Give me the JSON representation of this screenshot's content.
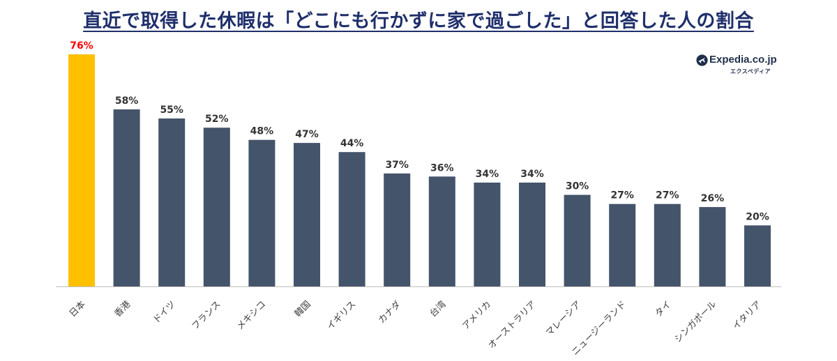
{
  "header": {
    "title": "直近で取得した休暇は「どこにも行かずに家で過ごした」と回答した人の割合"
  },
  "logo": {
    "brand": "Expedia.co.jp",
    "sub": "エクスペディア",
    "mark_icon": "plane-globe-icon"
  },
  "colors": {
    "highlight_bar": "#FFC000",
    "bar": "#44546A",
    "highlight_label": "#FF0000",
    "label": "#333333",
    "title": "#1F2F6B",
    "axis": "#BFBFBF"
  },
  "chart_data": {
    "type": "bar",
    "title": "直近で取得した休暇は「どこにも行かずに家で過ごした」と回答した人の割合",
    "categories": [
      "日本",
      "香港",
      "ドイツ",
      "フランス",
      "メキシコ",
      "韓国",
      "イギリス",
      "カナダ",
      "台湾",
      "アメリカ",
      "オーストラリア",
      "マレーシア",
      "ニュージーランド",
      "タイ",
      "シンガポール",
      "イタリア"
    ],
    "values": [
      76,
      58,
      55,
      52,
      48,
      47,
      44,
      37,
      36,
      34,
      34,
      30,
      27,
      27,
      26,
      20
    ],
    "value_labels": [
      "76%",
      "58%",
      "55%",
      "52%",
      "48%",
      "47%",
      "44%",
      "37%",
      "36%",
      "34%",
      "34%",
      "30%",
      "27%",
      "27%",
      "26%",
      "20%"
    ],
    "highlight_index": 0,
    "xlabel": "",
    "ylabel": "",
    "ylim": [
      0,
      76
    ],
    "grid": false,
    "legend": "none"
  }
}
